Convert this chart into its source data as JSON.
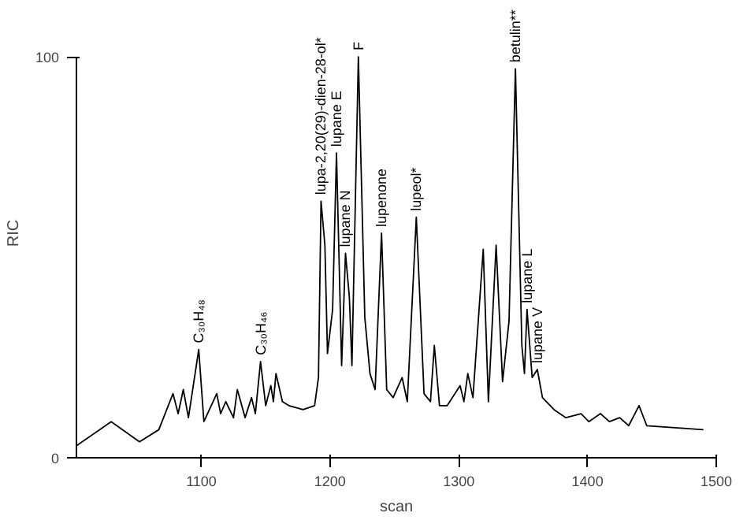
{
  "chart_data": {
    "type": "line",
    "xlabel": "scan",
    "ylabel": "RIC",
    "x": [
      1003,
      1030,
      1052,
      1067,
      1078,
      1082,
      1086,
      1090,
      1098,
      1102,
      1112,
      1115,
      1119,
      1125,
      1128,
      1134,
      1139,
      1142,
      1146,
      1150,
      1154,
      1156,
      1158,
      1163,
      1168,
      1179,
      1188,
      1191,
      1193,
      1196,
      1198,
      1202,
      1205,
      1209,
      1212,
      1215,
      1217,
      1222,
      1227,
      1231,
      1235,
      1240,
      1244,
      1249,
      1256,
      1260,
      1267,
      1273,
      1278,
      1281,
      1285,
      1291,
      1301,
      1304,
      1307,
      1311,
      1319,
      1323,
      1329,
      1334,
      1339,
      1344,
      1349,
      1351,
      1353,
      1357,
      1361,
      1365,
      1374,
      1383,
      1395,
      1401,
      1410,
      1417,
      1425,
      1432,
      1440,
      1446,
      1490
    ],
    "series": [
      {
        "color": "#000000",
        "values": [
          3,
          9,
          4,
          7,
          16,
          11,
          17,
          10,
          27,
          9,
          16,
          11,
          14,
          10,
          17,
          10,
          15,
          11,
          24,
          13,
          18,
          14,
          21,
          14,
          13,
          12,
          13,
          20,
          64,
          53,
          26,
          37,
          76,
          23,
          51,
          40,
          23,
          100,
          35,
          21,
          17,
          56,
          17,
          15,
          20,
          14,
          60,
          16,
          14,
          28,
          13,
          13,
          18,
          14,
          21,
          15,
          52,
          14,
          53,
          19,
          34,
          97,
          28,
          21,
          37,
          20,
          22,
          15,
          12,
          10,
          11,
          9,
          11,
          9,
          10,
          8,
          13,
          8,
          7
        ]
      }
    ],
    "xlim": [
      1003,
      1500
    ],
    "ylim": [
      0,
      100
    ],
    "xticks": [
      1100,
      1200,
      1300,
      1400,
      1500
    ],
    "yticks": [
      0,
      100
    ],
    "grid": false,
    "line_style": "solid",
    "annotations": [
      {
        "text": "C₃₀H₄₈",
        "x": 1098,
        "y": 27
      },
      {
        "text": "C₃₀H₄₆",
        "x": 1146,
        "y": 24
      },
      {
        "text": "lupa-2,20(29)-dien-28-ol*",
        "x": 1193,
        "y": 64
      },
      {
        "text": "lupane E",
        "x": 1205,
        "y": 76
      },
      {
        "text": "lupane N",
        "x": 1212,
        "y": 51
      },
      {
        "text": "F",
        "x": 1222,
        "y": 100
      },
      {
        "text": "lupenone",
        "x": 1240,
        "y": 56
      },
      {
        "text": "lupeol*",
        "x": 1267,
        "y": 60
      },
      {
        "text": "betulin**",
        "x": 1344,
        "y": 97
      },
      {
        "text": "lupane L",
        "x": 1353,
        "y": 37
      },
      {
        "text": "lupane V",
        "x": 1361,
        "y": 22
      }
    ]
  }
}
